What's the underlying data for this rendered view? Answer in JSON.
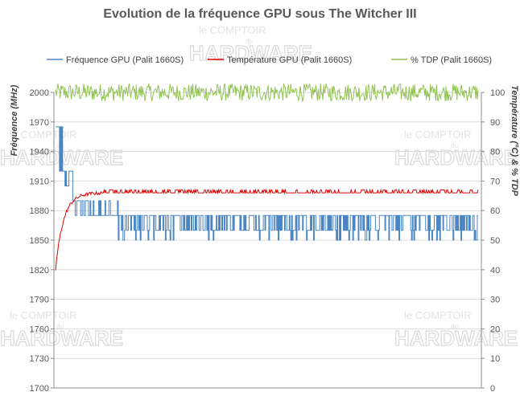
{
  "chart_data": {
    "type": "line",
    "title": "Evolution de la fréquence GPU sous The Witcher III",
    "ylabel": "Fréquence (MHz)",
    "y2label": "Température  (°C) & % TDP",
    "ylim": [
      1700,
      2000
    ],
    "y2lim": [
      0,
      105
    ],
    "yticks": [
      "1700",
      "1730",
      "1760",
      "1790",
      "1820",
      "1850",
      "1880",
      "1910",
      "1940",
      "1970",
      "2000"
    ],
    "y2ticks": [
      "0",
      "10",
      "20",
      "30",
      "40",
      "50",
      "60",
      "70",
      "80",
      "90",
      "100"
    ],
    "grid": true,
    "legend_position": "top",
    "x_samples": 540,
    "series": [
      {
        "name": "Fréquence GPU (Palit 1660S)",
        "axis": "left",
        "color": "#4a86c5",
        "profile": [
          {
            "from": 0,
            "to": 5,
            "value": 1965
          },
          {
            "from": 5,
            "to": 12,
            "value": 1920,
            "alt": 1965
          },
          {
            "from": 12,
            "to": 22,
            "value": 1905,
            "alt": 1920
          },
          {
            "from": 22,
            "to": 45,
            "value": 1890,
            "alt": 1875
          },
          {
            "from": 45,
            "to": 80,
            "value": 1875,
            "alt": 1890
          },
          {
            "from": 80,
            "to": 540,
            "value": 1875,
            "alt": 1860,
            "low": 1850
          }
        ]
      },
      {
        "name": "Température GPU  (Palit 1660S)",
        "axis": "right",
        "color": "#e00000",
        "start": 40,
        "plateau": 66,
        "peak": 67
      },
      {
        "name": "% TDP (Palit 1660S)",
        "axis": "right",
        "color": "#92c353",
        "mean": 100,
        "min": 97,
        "max": 103
      }
    ]
  },
  "watermark": {
    "line1": "le COMPTOIR",
    "line2": "du",
    "line3": "HARDWARE"
  }
}
